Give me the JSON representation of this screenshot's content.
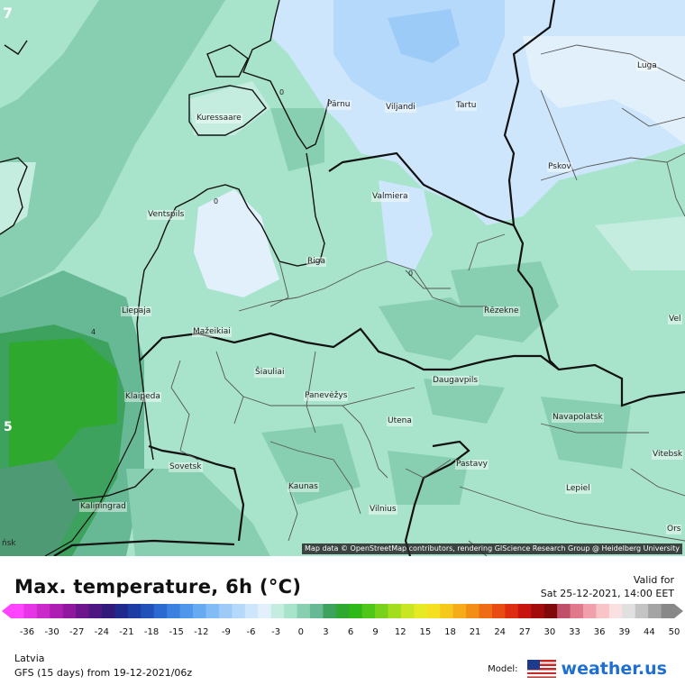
{
  "map": {
    "attribution": "Map data © OpenStreetMap contributors, rendering GIScience Research Group @ Heidelberg University",
    "edge_labels": [
      "7",
      "5"
    ],
    "edge_text": [
      "ńsk"
    ],
    "isoline_labels": [
      "0",
      "0",
      "0",
      "4"
    ],
    "cities": [
      {
        "name": "Pärnu"
      },
      {
        "name": "Viljandi"
      },
      {
        "name": "Tartu"
      },
      {
        "name": "Luga"
      },
      {
        "name": "Kuressaare"
      },
      {
        "name": "Pskov"
      },
      {
        "name": "Valmiera"
      },
      {
        "name": "Ventspils"
      },
      {
        "name": "Riga"
      },
      {
        "name": "Liepaja"
      },
      {
        "name": "Rēzekne"
      },
      {
        "name": "Mažeikiai"
      },
      {
        "name": "Šiauliai"
      },
      {
        "name": "Panevėžys"
      },
      {
        "name": "Daugavpils"
      },
      {
        "name": "Klaipeda"
      },
      {
        "name": "Utena"
      },
      {
        "name": "Navapolatsk"
      },
      {
        "name": "Sovetsk"
      },
      {
        "name": "Pastavy"
      },
      {
        "name": "Kaunas"
      },
      {
        "name": "Lepiel"
      },
      {
        "name": "Kaliningrad"
      },
      {
        "name": "Vilnius"
      },
      {
        "name": "Vitebsk"
      },
      {
        "name": "Vel"
      },
      {
        "name": "Ors"
      }
    ]
  },
  "legend": {
    "title": "Max. temperature, 6h (°C)",
    "valid_for": "Valid for",
    "valid_time": "Sat 25-12-2021, 14:00 EET",
    "ticks": [
      "-36",
      "-30",
      "-27",
      "-24",
      "-21",
      "-18",
      "-15",
      "-12",
      "-9",
      "-6",
      "-3",
      "0",
      "3",
      "6",
      "9",
      "12",
      "15",
      "18",
      "21",
      "24",
      "27",
      "30",
      "33",
      "36",
      "39",
      "44",
      "50"
    ],
    "colors": [
      "#ff44ff",
      "#e635e6",
      "#c92ac9",
      "#ad1fb3",
      "#8f189e",
      "#6d158c",
      "#4d1680",
      "#311a7a",
      "#1f2a8c",
      "#1c3da3",
      "#2152ba",
      "#2b6bd1",
      "#3b82e0",
      "#4f97ea",
      "#66abf2",
      "#80bdf6",
      "#9ccbf8",
      "#b5d9fa",
      "#cde6fb",
      "#e2f0fc",
      "#c4ede0",
      "#a8e3cc",
      "#87cfb0",
      "#66b994",
      "#3ea25f",
      "#2fa82f",
      "#2fb81a",
      "#4fc71a",
      "#78d21c",
      "#a2dd1e",
      "#c8e622",
      "#e6ea24",
      "#f4e020",
      "#f7c81c",
      "#f5ac18",
      "#f28e16",
      "#ee6d14",
      "#e84c12",
      "#de2c10",
      "#c8140f",
      "#a20c0c",
      "#800a0a",
      "#c0506a",
      "#e07a8a",
      "#f0a0aa",
      "#f8c4c8",
      "#fbe0e2",
      "#e0e0e0",
      "#c4c4c4",
      "#a4a4a4",
      "#888888"
    ],
    "region": "Latvia",
    "model_run": "GFS (15 days) from  19-12-2021/06z",
    "model_label": "Model:",
    "brand": "weather.us"
  }
}
